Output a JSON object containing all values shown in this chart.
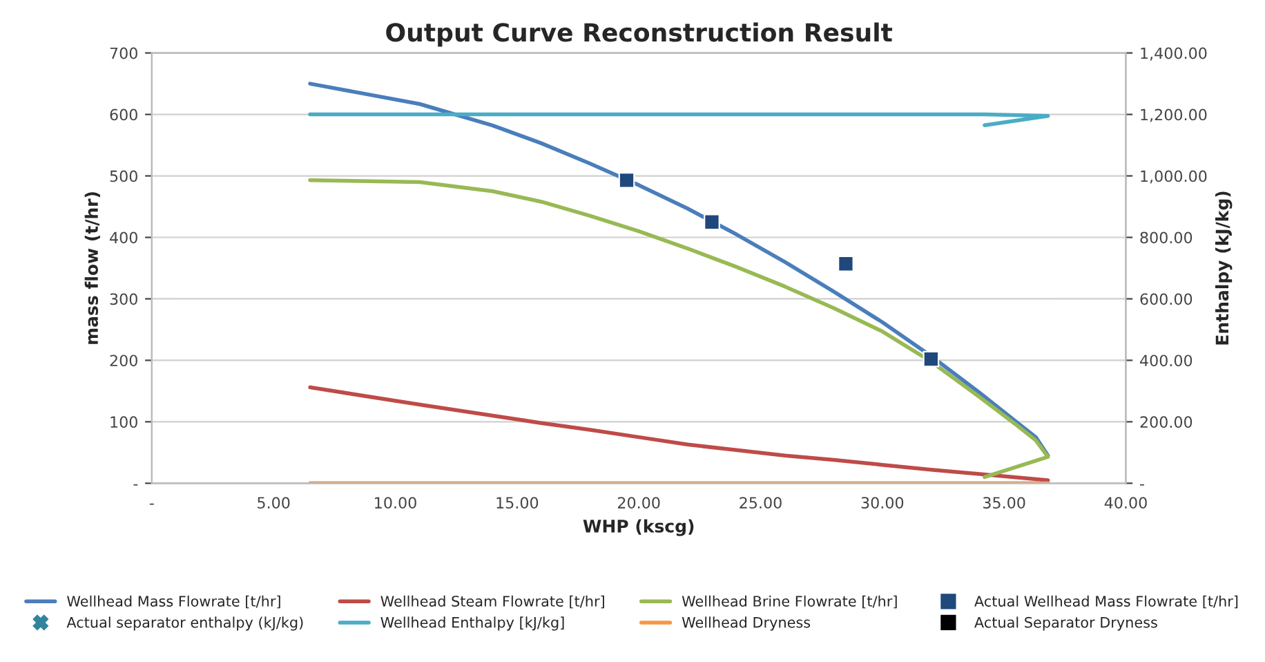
{
  "chart_data": {
    "type": "line",
    "title": "Output Curve Reconstruction Result",
    "xlabel": "WHP (kscg)",
    "ylabel": "mass flow (t/hr)",
    "y2label": "Enthalpy (kJ/kg)",
    "xlim": [
      0,
      40
    ],
    "xticks": [
      {
        "value": 0,
        "label": "-"
      },
      {
        "value": 5,
        "label": "5.00"
      },
      {
        "value": 10,
        "label": "10.00"
      },
      {
        "value": 15,
        "label": "15.00"
      },
      {
        "value": 20,
        "label": "20.00"
      },
      {
        "value": 25,
        "label": "25.00"
      },
      {
        "value": 30,
        "label": "30.00"
      },
      {
        "value": 35,
        "label": "35.00"
      },
      {
        "value": 40,
        "label": "40.00"
      }
    ],
    "ylim": [
      0,
      700
    ],
    "yticks": [
      {
        "value": 0,
        "label": "-"
      },
      100,
      200,
      300,
      400,
      500,
      600,
      700
    ],
    "y2lim": [
      0,
      1400
    ],
    "y2ticks": [
      {
        "value": 0,
        "label": "-"
      },
      {
        "value": 200,
        "label": "200.00"
      },
      {
        "value": 400,
        "label": "400.00"
      },
      {
        "value": 600,
        "label": "600.00"
      },
      {
        "value": 800,
        "label": "800.00"
      },
      {
        "value": 1000,
        "label": "1,000.00"
      },
      {
        "value": 1200,
        "label": "1,200.00"
      },
      {
        "value": 1400,
        "label": "1,400.00"
      }
    ],
    "grid": "y",
    "legend": "bottom",
    "marker": "none",
    "line_style": "solid",
    "series": [
      {
        "name": "Wellhead Mass Flowrate [t/hr]",
        "color": "#4a7ebb",
        "x": [
          6.5,
          11,
          14,
          16,
          18,
          20,
          22,
          24,
          26,
          28,
          30,
          32,
          34,
          35.5,
          36.3,
          36.8
        ],
        "values": [
          650,
          617,
          582,
          553,
          520,
          485,
          447,
          405,
          360,
          312,
          262,
          207,
          147,
          100,
          75,
          45
        ]
      },
      {
        "name": "Wellhead Steam Flowrate [t/hr]",
        "color": "#be4b48",
        "x": [
          6.5,
          11,
          14,
          16,
          18,
          20,
          22,
          24,
          26,
          28,
          30,
          32,
          34,
          36.8
        ],
        "values": [
          156,
          128,
          110,
          98,
          87,
          75,
          63,
          54,
          45,
          38,
          30,
          22,
          15,
          5
        ]
      },
      {
        "name": "Wellhead Brine Flowrate [t/hr]",
        "color": "#98b954",
        "x": [
          6.5,
          11,
          14,
          16,
          18,
          20,
          22,
          24,
          26,
          28,
          30,
          32,
          34,
          35.5,
          36.3,
          36.8,
          34.2
        ],
        "values": [
          493,
          490,
          475,
          458,
          435,
          410,
          382,
          352,
          320,
          285,
          247,
          198,
          140,
          95,
          70,
          43,
          10
        ]
      },
      {
        "name": "Actual Wellhead Mass Flowrate [t/hr]",
        "type": "scatter",
        "marker": "square",
        "color": "#1f497d",
        "x": [
          19.5,
          23,
          28.5,
          32
        ],
        "values": [
          493,
          425,
          357,
          202
        ]
      },
      {
        "name": "Actual separator enthalpy (kJ/kg)",
        "type": "scatter",
        "marker": "cross",
        "axis": "y2",
        "color": "#31859c"
      },
      {
        "name": "Wellhead Enthalpy [kJ/kg]",
        "axis": "y2",
        "color": "#4bacc6",
        "x": [
          6.5,
          34.2,
          36.8,
          34.2
        ],
        "values": [
          1200,
          1200,
          1195,
          1165
        ]
      },
      {
        "name": "Wellhead Dryness",
        "color": "#f79646",
        "x": [
          6.5,
          36.8
        ],
        "values": [
          0,
          0
        ]
      },
      {
        "name": "Actual Separator Dryness",
        "type": "scatter",
        "marker": "square",
        "color": "#000000"
      }
    ]
  }
}
